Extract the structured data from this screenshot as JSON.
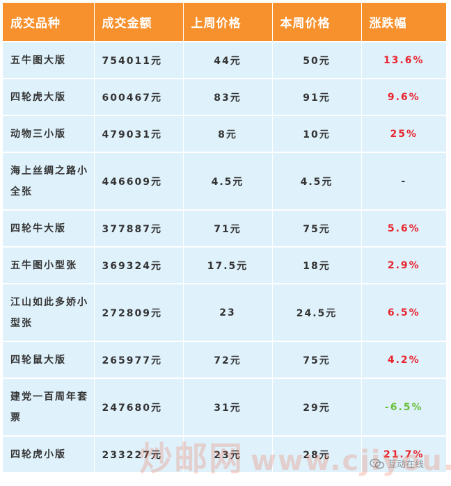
{
  "table": {
    "headers": [
      "成交品种",
      "成交金额",
      "上周价格",
      "本周价格",
      "涨跌幅"
    ],
    "rows": [
      {
        "name": "五牛图大版",
        "amount": "754011元",
        "last_week": "44元",
        "this_week": "50元",
        "change": "13.6%",
        "trend": "up"
      },
      {
        "name": "四轮虎大版",
        "amount": "600467元",
        "last_week": "83元",
        "this_week": "91元",
        "change": "9.6%",
        "trend": "up"
      },
      {
        "name": "动物三小版",
        "amount": "479031元",
        "last_week": "8元",
        "this_week": "10元",
        "change": "25%",
        "trend": "up"
      },
      {
        "name": "海上丝绸之路小全张",
        "amount": "446609元",
        "last_week": "4.5元",
        "this_week": "4.5元",
        "change": "-",
        "trend": "flat"
      },
      {
        "name": "四轮牛大版",
        "amount": "377887元",
        "last_week": "71元",
        "this_week": "75元",
        "change": "5.6%",
        "trend": "up"
      },
      {
        "name": "五牛图小型张",
        "amount": "369324元",
        "last_week": "17.5元",
        "this_week": "18元",
        "change": "2.9%",
        "trend": "up"
      },
      {
        "name": "江山如此多娇小型张",
        "amount": "272809元",
        "last_week": "23",
        "this_week": "24.5元",
        "change": "6.5%",
        "trend": "up"
      },
      {
        "name": "四轮鼠大版",
        "amount": "265977元",
        "last_week": "72元",
        "this_week": "75元",
        "change": "4.2%",
        "trend": "up"
      },
      {
        "name": "建党一百周年套票",
        "amount": "247680元",
        "last_week": "31元",
        "this_week": "29元",
        "change": "-6.5%",
        "trend": "down"
      },
      {
        "name": "四轮虎小版",
        "amount": "233227元",
        "last_week": "23元",
        "this_week": "28元",
        "change": "21.7%",
        "trend": "up"
      }
    ]
  },
  "colors": {
    "header_bg": "#f7912e",
    "row_bg": "#dff1fb",
    "up": "#e8252f",
    "down": "#6abf3a"
  },
  "watermark": {
    "text": "炒邮网",
    "url": "www.cjiyou.net"
  },
  "badge": {
    "icon": "wechat-icon",
    "text": "互动在线"
  }
}
